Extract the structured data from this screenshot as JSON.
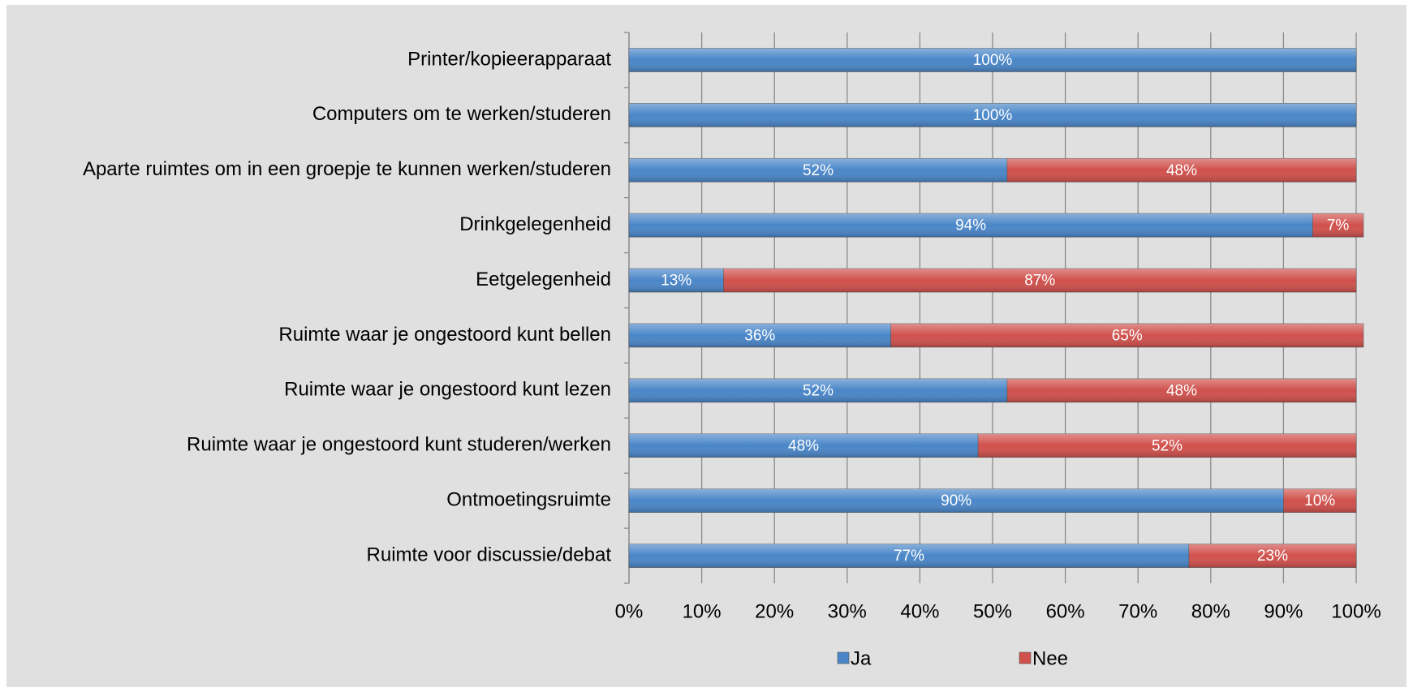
{
  "chart_data": {
    "type": "stacked_bar_horizontal",
    "categories": [
      "Printer/kopieerapparaat",
      "Computers om te werken/studeren",
      "Aparte ruimtes om in een groepje te kunnen werken/studeren",
      "Drinkgelegenheid",
      "Eetgelegenheid",
      "Ruimte waar je ongestoord kunt bellen",
      "Ruimte waar je ongestoord kunt lezen",
      "Ruimte waar je ongestoord kunt studeren/werken",
      "Ontmoetingsruimte",
      "Ruimte voor discussie/debat"
    ],
    "series": [
      {
        "name": "Ja",
        "color": "#4a86c8",
        "values": [
          100,
          100,
          52,
          94,
          13,
          36,
          52,
          48,
          90,
          77
        ],
        "value_labels": [
          "100%",
          "100%",
          "52%",
          "94%",
          "13%",
          "36%",
          "52%",
          "48%",
          "90%",
          "77%"
        ]
      },
      {
        "name": "Nee",
        "color": "#d0504c",
        "values": [
          null,
          null,
          48,
          7,
          87,
          65,
          48,
          52,
          10,
          23
        ],
        "value_labels": [
          null,
          null,
          "48%",
          "7%",
          "87%",
          "65%",
          "48%",
          "52%",
          "10%",
          "23%"
        ]
      }
    ],
    "xlim": [
      0,
      100
    ],
    "xticks": [
      {
        "value": 0,
        "label": "0%"
      },
      {
        "value": 10,
        "label": "10%"
      },
      {
        "value": 20,
        "label": "20%"
      },
      {
        "value": 30,
        "label": "30%"
      },
      {
        "value": 40,
        "label": "40%"
      },
      {
        "value": 50,
        "label": "50%"
      },
      {
        "value": 60,
        "label": "60%"
      },
      {
        "value": 70,
        "label": "70%"
      },
      {
        "value": 80,
        "label": "80%"
      },
      {
        "value": 90,
        "label": "90%"
      },
      {
        "value": 100,
        "label": "100%"
      }
    ],
    "grid": true,
    "legend": "bottom"
  }
}
